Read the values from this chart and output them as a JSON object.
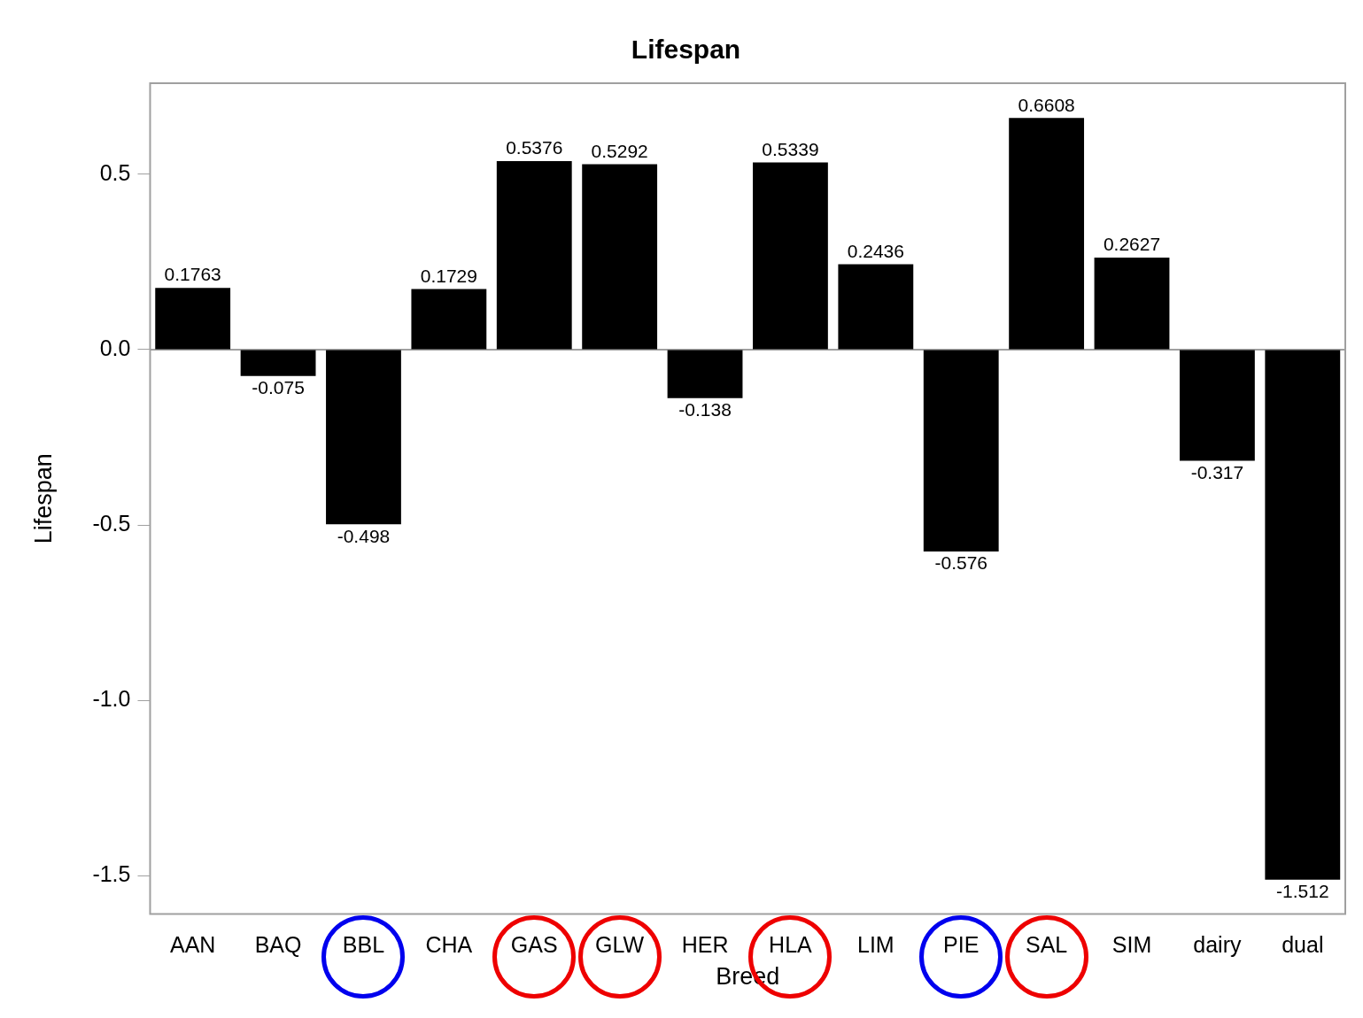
{
  "chart_data": {
    "type": "bar",
    "title": "Lifespan",
    "xlabel": "Breed",
    "ylabel": "Lifespan",
    "categories": [
      "AAN",
      "BAQ",
      "BBL",
      "CHA",
      "GAS",
      "GLW",
      "HER",
      "HLA",
      "LIM",
      "PIE",
      "SAL",
      "SIM",
      "dairy",
      "dual"
    ],
    "values": [
      0.1763,
      -0.075,
      -0.498,
      0.1729,
      0.5376,
      0.5292,
      -0.138,
      0.5339,
      0.2436,
      -0.576,
      0.6608,
      0.2627,
      -0.317,
      -1.512
    ],
    "color": "#000000",
    "ylim": [
      -1.61,
      0.76
    ],
    "yticks": [
      {
        "value": -1.5,
        "label": "-1.5"
      },
      {
        "value": -1,
        "label": "-1.0"
      },
      {
        "value": -0.5,
        "label": "-0.5"
      },
      {
        "value": 0,
        "label": "0.0"
      },
      0.5
    ],
    "ref_lines": [
      {
        "axis": "y",
        "value": 0,
        "color": "#a0a0a0"
      }
    ],
    "data_labels": true,
    "grid": false,
    "legend": false
  }
}
